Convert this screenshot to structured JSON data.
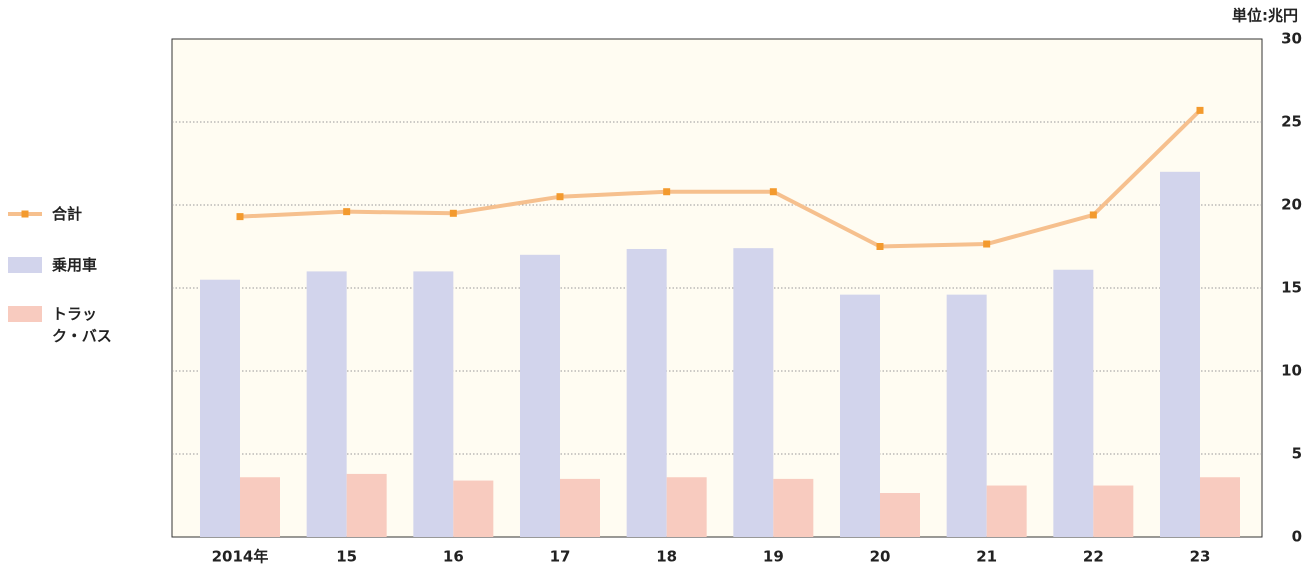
{
  "chart_data": {
    "type": "bar+line",
    "unit_label": "単位:兆円",
    "categories": [
      "2014年",
      "15",
      "16",
      "17",
      "18",
      "19",
      "20",
      "21",
      "22",
      "23"
    ],
    "series": [
      {
        "name": "合計",
        "type": "line",
        "color": "#f6c08e",
        "marker_color": "#f39a2e",
        "values": [
          19.3,
          19.6,
          19.5,
          20.5,
          20.8,
          20.8,
          17.5,
          17.65,
          19.4,
          25.7
        ]
      },
      {
        "name": "乗用車",
        "type": "bar",
        "color": "#d2d4ec",
        "values": [
          15.5,
          16.0,
          16.0,
          17.0,
          17.35,
          17.4,
          14.6,
          14.6,
          16.1,
          22.0
        ]
      },
      {
        "name": "トラック・バス",
        "type": "bar",
        "color": "#f8cbbf",
        "values": [
          3.6,
          3.8,
          3.4,
          3.5,
          3.6,
          3.5,
          2.65,
          3.1,
          3.1,
          3.6
        ]
      }
    ],
    "ylim": [
      0,
      30
    ],
    "yticks": [
      0,
      5,
      10,
      15,
      20,
      25,
      30
    ],
    "grid": true
  }
}
